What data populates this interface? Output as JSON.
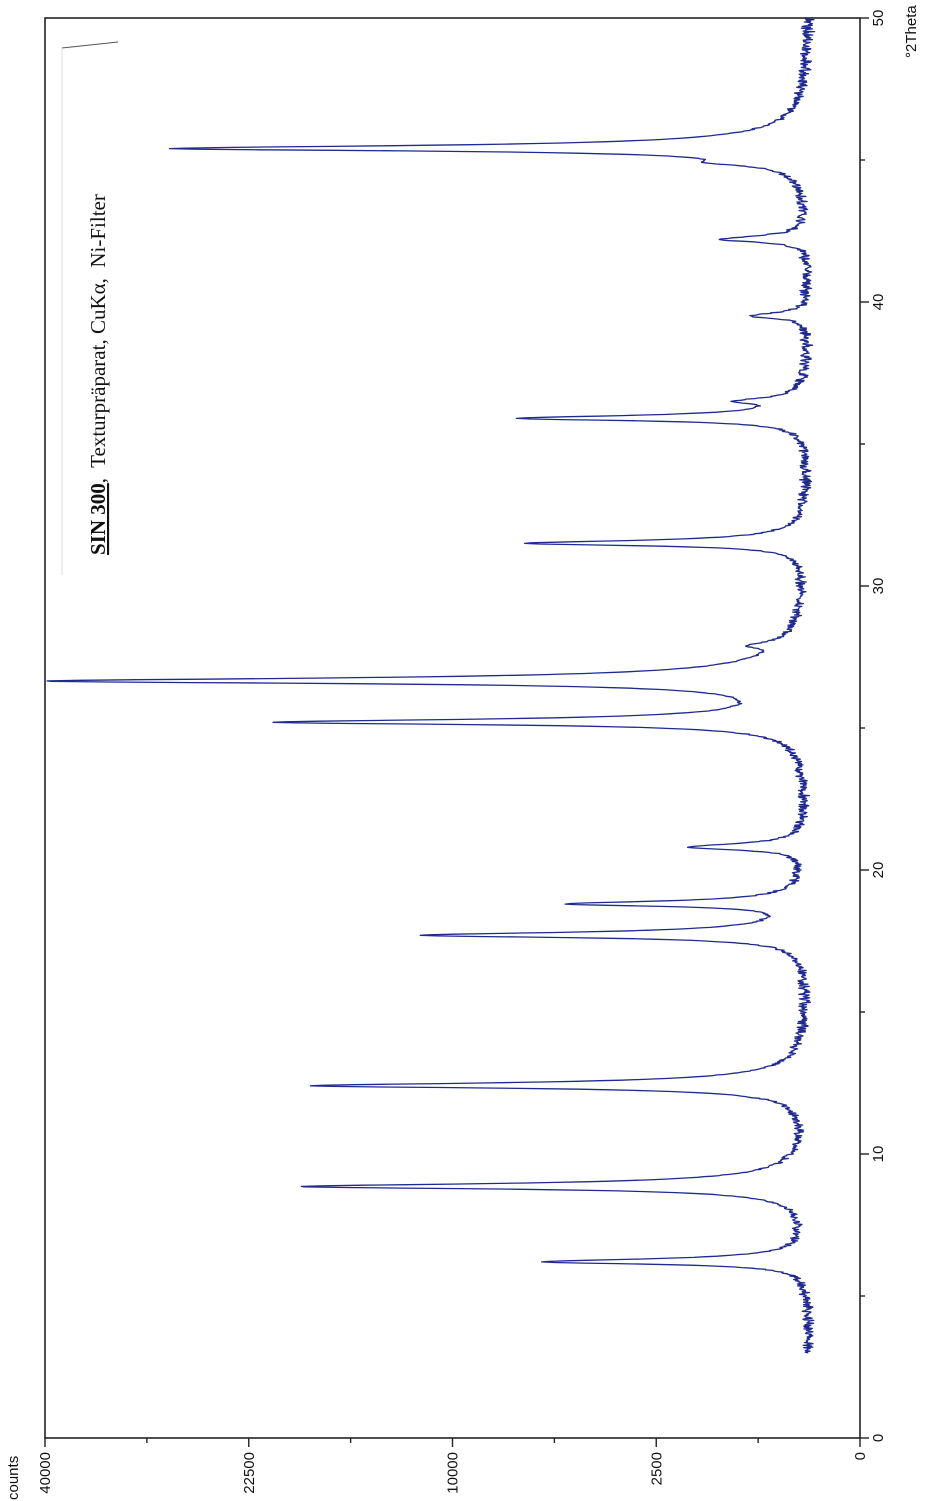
{
  "chart_data": {
    "type": "line",
    "title_bold": "SIN 300",
    "title_rest": ",  Texturpräparat, CuKα,  Ni-Filter",
    "xlabel": "°2Theta",
    "ylabel": "counts",
    "xlim": [
      0,
      50
    ],
    "x_ticks": [
      "0",
      "10",
      "20",
      "30",
      "40",
      "50"
    ],
    "y_scale": "sqrt",
    "ylim": [
      0,
      40000
    ],
    "y_ticks": [
      "0",
      "2500",
      "10000",
      "22500",
      "40000"
    ],
    "x_range_measured": [
      3,
      50
    ],
    "series": [
      {
        "color": "#1f2a8f",
        "baseline_counts": 150,
        "peaks": [
          {
            "x": 6.2,
            "y": 5900
          },
          {
            "x": 8.85,
            "y": 18800
          },
          {
            "x": 12.4,
            "y": 18000
          },
          {
            "x": 17.7,
            "y": 11500
          },
          {
            "x": 18.8,
            "y": 5000
          },
          {
            "x": 20.8,
            "y": 1600
          },
          {
            "x": 25.2,
            "y": 20500
          },
          {
            "x": 26.65,
            "y": 40000
          },
          {
            "x": 27.9,
            "y": 380
          },
          {
            "x": 31.5,
            "y": 6600
          },
          {
            "x": 35.9,
            "y": 6900
          },
          {
            "x": 36.5,
            "y": 650
          },
          {
            "x": 39.5,
            "y": 550
          },
          {
            "x": 42.2,
            "y": 1000
          },
          {
            "x": 44.9,
            "y": 750
          },
          {
            "x": 45.4,
            "y": 28500
          }
        ]
      }
    ]
  }
}
